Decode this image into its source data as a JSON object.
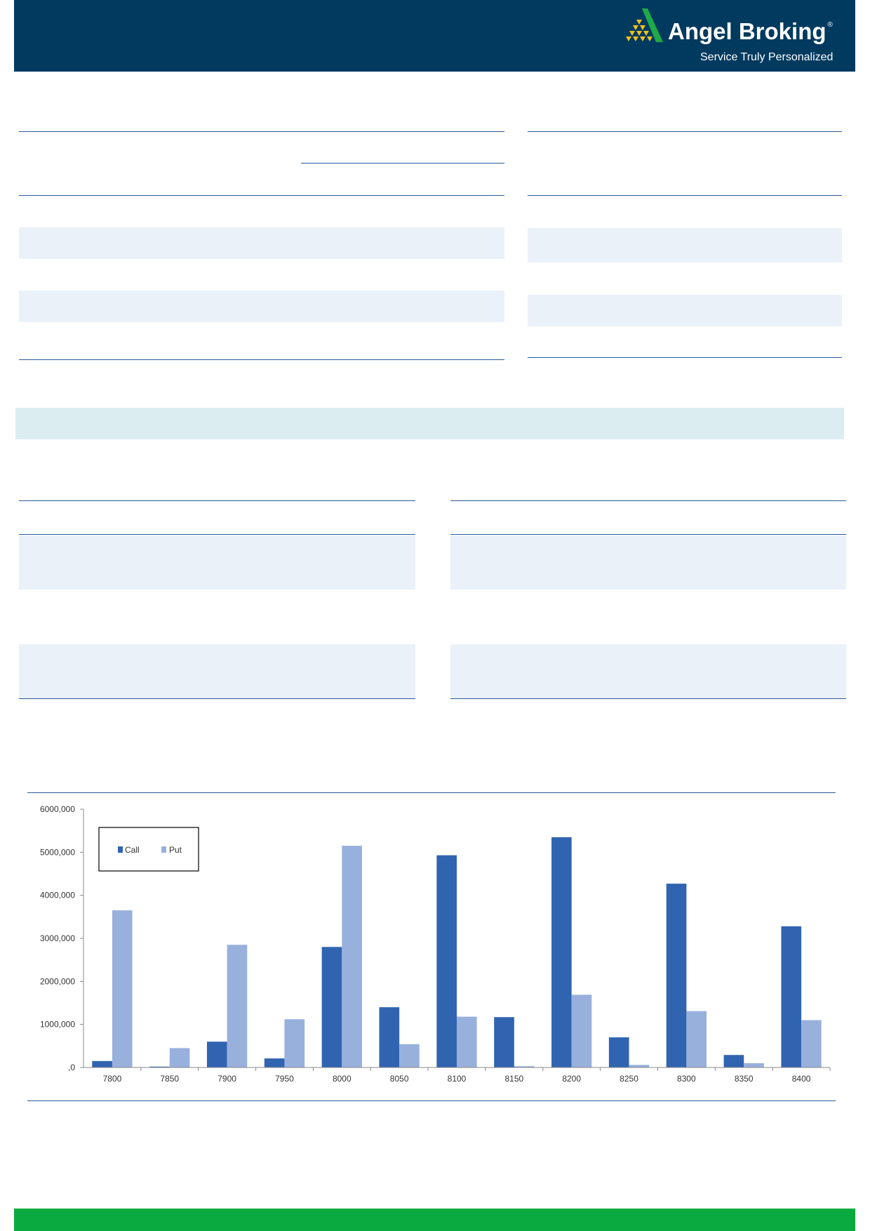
{
  "header": {
    "brand": "Angel Broking",
    "registered_mark": "®",
    "tagline": "Service Truly Personalized",
    "background_color": "#003a5f"
  },
  "footer": {
    "color": "#0aaa40"
  },
  "chart_data": {
    "type": "bar",
    "categories": [
      "7800",
      "7850",
      "7900",
      "7950",
      "8000",
      "8050",
      "8100",
      "8150",
      "8200",
      "8250",
      "8300",
      "8350",
      "8400"
    ],
    "series": [
      {
        "name": "Call",
        "color": "#3064b0",
        "values": [
          150000,
          20000,
          600000,
          210000,
          2800000,
          1400000,
          4930000,
          1170000,
          5350000,
          700000,
          4270000,
          290000,
          3280000
        ]
      },
      {
        "name": "Put",
        "color": "#98b0dc",
        "values": [
          3650000,
          450000,
          2850000,
          1120000,
          5150000,
          540000,
          1180000,
          30000,
          1690000,
          60000,
          1310000,
          100000,
          1100000
        ]
      }
    ],
    "yticks": [
      0,
      1000000,
      2000000,
      3000000,
      4000000,
      5000000,
      6000000
    ],
    "ytick_labels": [
      ",0",
      "1000,000",
      "2000,000",
      "3000,000",
      "4000,000",
      "5000,000",
      "6000,000"
    ],
    "ylim": [
      0,
      6000000
    ],
    "legend_position": "top-left",
    "grid": false
  }
}
